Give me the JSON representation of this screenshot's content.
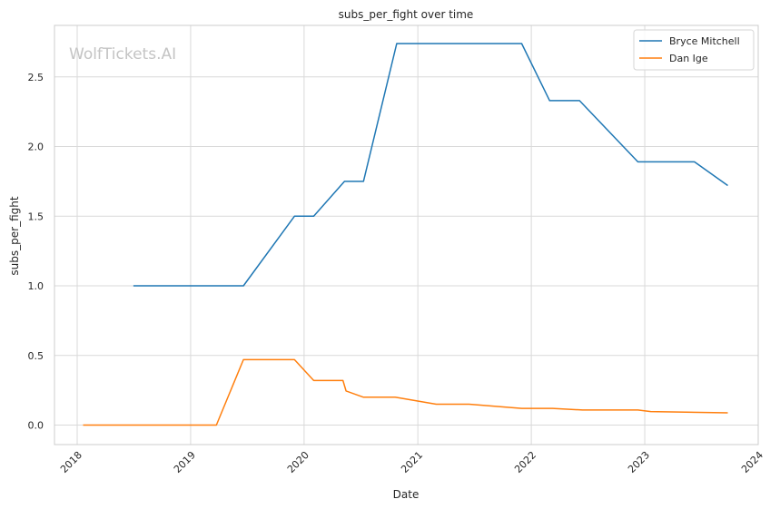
{
  "watermark": "WolfTickets.AI",
  "chart_data": {
    "type": "line",
    "title": "subs_per_fight over time",
    "xlabel": "Date",
    "ylabel": "subs_per_fight",
    "xlim": [
      "2017-10-20",
      "2024-01-01"
    ],
    "ylim": [
      -0.14,
      2.87
    ],
    "x_ticks": [
      "2018-01-01",
      "2019-01-01",
      "2020-01-01",
      "2021-01-01",
      "2022-01-01",
      "2023-01-01",
      "2024-01-01"
    ],
    "x_tick_labels": [
      "2018",
      "2019",
      "2020",
      "2021",
      "2022",
      "2023",
      "2024"
    ],
    "y_ticks": [
      0.0,
      0.5,
      1.0,
      1.5,
      2.0,
      2.5
    ],
    "y_tick_labels": [
      "0.0",
      "0.5",
      "1.0",
      "1.5",
      "2.0",
      "2.5"
    ],
    "grid": true,
    "legend_position": "top-right",
    "series": [
      {
        "name": "Bryce Mitchell",
        "color": "#1f77b4",
        "points": [
          [
            "2018-07-01",
            1.0
          ],
          [
            "2019-06-20",
            1.0
          ],
          [
            "2019-12-01",
            1.5
          ],
          [
            "2020-02-01",
            1.5
          ],
          [
            "2020-05-10",
            1.75
          ],
          [
            "2020-07-10",
            1.75
          ],
          [
            "2020-10-25",
            2.74
          ],
          [
            "2021-12-01",
            2.74
          ],
          [
            "2022-03-01",
            2.33
          ],
          [
            "2022-06-05",
            2.33
          ],
          [
            "2022-12-10",
            1.89
          ],
          [
            "2023-06-10",
            1.89
          ],
          [
            "2023-09-25",
            1.72
          ]
        ]
      },
      {
        "name": "Dan Ige",
        "color": "#ff7f0e",
        "points": [
          [
            "2018-01-20",
            0.0
          ],
          [
            "2019-03-25",
            0.0
          ],
          [
            "2019-06-20",
            0.47
          ],
          [
            "2019-12-01",
            0.47
          ],
          [
            "2020-02-01",
            0.32
          ],
          [
            "2020-05-05",
            0.32
          ],
          [
            "2020-05-15",
            0.245
          ],
          [
            "2020-07-10",
            0.2
          ],
          [
            "2020-10-20",
            0.2
          ],
          [
            "2021-03-01",
            0.15
          ],
          [
            "2021-06-15",
            0.15
          ],
          [
            "2021-12-01",
            0.12
          ],
          [
            "2022-03-10",
            0.12
          ],
          [
            "2022-06-15",
            0.108
          ],
          [
            "2022-12-10",
            0.108
          ],
          [
            "2023-01-20",
            0.097
          ],
          [
            "2023-09-25",
            0.088
          ]
        ]
      }
    ]
  }
}
